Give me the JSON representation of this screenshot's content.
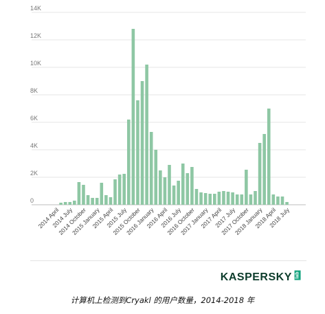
{
  "chart_data": {
    "type": "bar",
    "title": "",
    "xlabel": "",
    "ylabel": "",
    "ylim": [
      0,
      14000
    ],
    "yticks": [
      0,
      2000,
      4000,
      6000,
      8000,
      10000,
      12000,
      14000
    ],
    "ytick_labels": [
      "0",
      "2K",
      "4K",
      "6K",
      "8K",
      "10K",
      "12K",
      "14K"
    ],
    "grid": true,
    "color": "#8ec7a4",
    "categories": [
      "2014 April",
      "2014 May",
      "2014 June",
      "2014 July",
      "2014 August",
      "2014 September",
      "2014 October",
      "2014 November",
      "2014 December",
      "2015 January",
      "2015 February",
      "2015 March",
      "2015 April",
      "2015 May",
      "2015 June",
      "2015 July",
      "2015 August",
      "2015 September",
      "2015 October",
      "2015 November",
      "2015 December",
      "2016 January",
      "2016 February",
      "2016 March",
      "2016 April",
      "2016 May",
      "2016 June",
      "2016 July",
      "2016 August",
      "2016 September",
      "2016 October",
      "2016 November",
      "2016 December",
      "2017 January",
      "2017 February",
      "2017 March",
      "2017 April",
      "2017 May",
      "2017 June",
      "2017 July",
      "2017 August",
      "2017 September",
      "2017 October",
      "2017 November",
      "2017 December",
      "2018 January",
      "2018 February",
      "2018 March",
      "2018 April",
      "2018 May",
      "2018 June",
      "2018 July"
    ],
    "values": [
      0,
      150,
      200,
      200,
      300,
      1650,
      1450,
      700,
      500,
      500,
      1600,
      700,
      550,
      1850,
      2200,
      2250,
      6200,
      12800,
      7600,
      9000,
      10200,
      5300,
      4000,
      2500,
      2000,
      2900,
      1400,
      1750,
      3000,
      2300,
      2750,
      1150,
      900,
      850,
      800,
      800,
      950,
      1000,
      950,
      900,
      750,
      750,
      2550,
      750,
      1000,
      4500,
      5150,
      7000,
      750,
      600,
      600,
      200
    ],
    "tick_labels": [
      "2014 April",
      "2014 July",
      "2014 October",
      "2015 January",
      "2015 April",
      "2015 July",
      "2015 October",
      "2016 January",
      "2016 April",
      "2016 July",
      "2016 October",
      "2017 January",
      "2017 April",
      "2017 July",
      "2017 October",
      "2018 January",
      "2018 April",
      "2018 July"
    ]
  },
  "brand": {
    "word": "KASPERSKY",
    "lab": "lab"
  },
  "caption": "计算机上检测到Cryakl 的用户数量，2014-2018 年"
}
